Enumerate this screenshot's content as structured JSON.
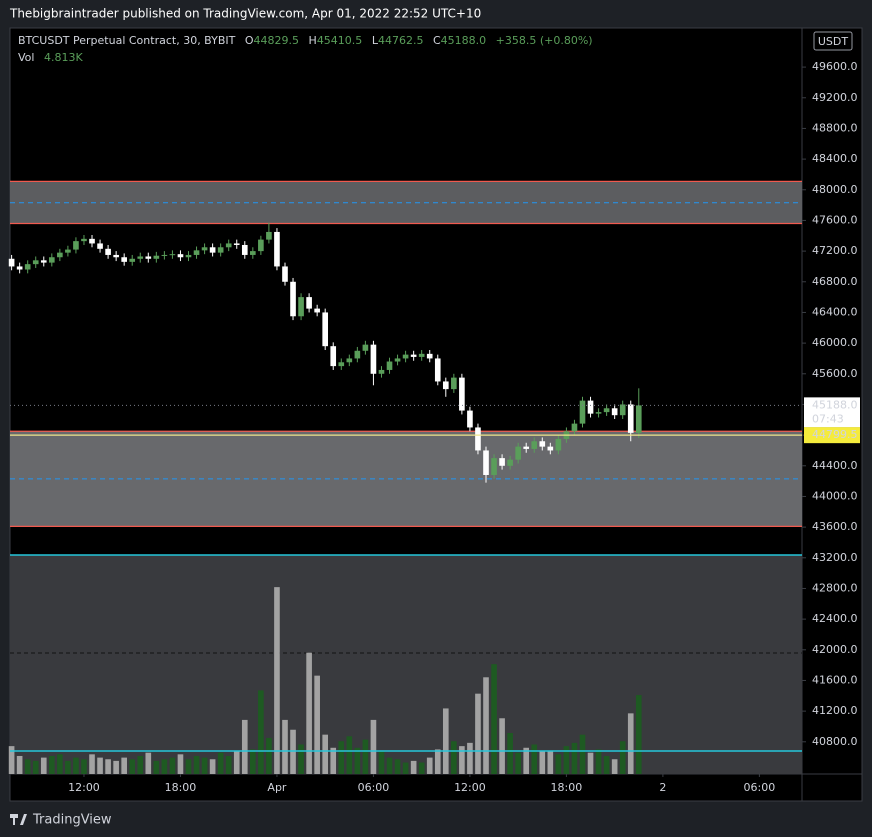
{
  "chart_data": {
    "type": "candlestick",
    "header": "Thebigbraintrader published on TradingView.com, Apr 01, 2022 22:52 UTC+10",
    "symbol": "BTCUSDT Perpetual Contract, 30, BYBIT",
    "legend": {
      "o_key": "O",
      "open": "44829.5",
      "h_key": "H",
      "high": "45410.5",
      "l_key": "L",
      "low": "44762.5",
      "c_key": "C",
      "close": "45188.0",
      "change": "+358.5 (+0.80%)"
    },
    "volume_name": "Vol",
    "volume_label": "4.813K",
    "currency": "USDT",
    "last_price_label": "45188.0",
    "countdown": "07:43",
    "hline": {
      "value": 44799.5,
      "label": "44799.5"
    },
    "brand": "TradingView",
    "up_color": "#5a9e5a",
    "down_color": "#ffffff",
    "volume_up_color": "#1e5a22",
    "volume_down_color": "#a3a3a3",
    "zones": [
      [
        47560,
        48110
      ],
      [
        43610,
        44850
      ]
    ],
    "zone_midlines": [
      47830,
      44230
    ],
    "x": [
      7.5,
      8,
      8.5,
      9,
      9.5,
      10,
      10.5,
      11,
      11.5,
      12,
      12.5,
      13,
      13.5,
      14,
      14.5,
      15,
      15.5,
      16,
      16.5,
      17,
      17.5,
      18,
      18.5,
      19,
      19.5,
      20,
      20.5,
      21,
      21.5,
      22,
      22.5,
      23,
      23.5,
      24,
      24.5,
      25,
      25.5,
      26,
      26.5,
      27,
      27.5,
      28,
      28.5,
      29,
      29.5,
      30,
      30.5,
      31,
      31.5,
      32,
      32.5,
      33,
      33.5,
      34,
      34.5,
      35,
      35.5,
      36,
      36.5,
      37,
      37.5,
      38,
      38.5,
      39,
      39.5,
      40,
      40.5,
      41,
      41.5,
      42,
      42.5,
      43,
      43.5,
      44,
      44.5,
      45,
      45.5,
      46,
      46.5
    ],
    "open": [
      47100,
      47000,
      46960,
      47030,
      47080,
      47050,
      47120,
      47180,
      47220,
      47330,
      47360,
      47300,
      47230,
      47150,
      47120,
      47060,
      47100,
      47130,
      47100,
      47140,
      47150,
      47160,
      47120,
      47150,
      47210,
      47250,
      47180,
      47250,
      47300,
      47280,
      47150,
      47200,
      47350,
      47450,
      47000,
      46800,
      46350,
      46600,
      46450,
      46400,
      45960,
      45700,
      45750,
      45800,
      45900,
      45980,
      45600,
      45650,
      45760,
      45800,
      45850,
      45820,
      45860,
      45800,
      45500,
      45400,
      45550,
      45120,
      44900,
      44600,
      44280,
      44500,
      44400,
      44480,
      44650,
      44620,
      44720,
      44650,
      44600,
      44750,
      44850,
      44950,
      45250,
      45080,
      45100,
      45150,
      45060,
      45200,
      44829.5
    ],
    "high": [
      47150,
      47050,
      47080,
      47130,
      47130,
      47170,
      47230,
      47270,
      47380,
      47410,
      47410,
      47350,
      47280,
      47200,
      47170,
      47150,
      47180,
      47180,
      47190,
      47200,
      47210,
      47210,
      47200,
      47260,
      47300,
      47300,
      47300,
      47350,
      47350,
      47330,
      47250,
      47400,
      47570,
      47500,
      47050,
      46850,
      46650,
      46650,
      46500,
      46450,
      46010,
      45800,
      45850,
      45950,
      46030,
      46030,
      45700,
      45810,
      45850,
      45900,
      45900,
      45910,
      45910,
      45850,
      45550,
      45600,
      45600,
      45170,
      44950,
      44650,
      44550,
      44550,
      44530,
      44700,
      44700,
      44770,
      44770,
      44700,
      44800,
      44900,
      45000,
      45300,
      45300,
      45150,
      45200,
      45200,
      45250,
      45250,
      45410.5
    ],
    "low": [
      46950,
      46910,
      46910,
      46980,
      47000,
      47000,
      47070,
      47130,
      47170,
      47280,
      47250,
      47180,
      47100,
      47070,
      47010,
      47010,
      47050,
      47050,
      47050,
      47090,
      47100,
      47070,
      47070,
      47100,
      47160,
      47130,
      47130,
      47200,
      47230,
      47100,
      47100,
      47150,
      47300,
      46950,
      46750,
      46300,
      46300,
      46400,
      46350,
      45910,
      45650,
      45650,
      45700,
      45750,
      45850,
      45450,
      45550,
      45600,
      45710,
      45750,
      45770,
      45770,
      45750,
      45450,
      45300,
      45350,
      45070,
      44850,
      44550,
      44180,
      44230,
      44350,
      44350,
      44430,
      44570,
      44570,
      44600,
      44550,
      44550,
      44700,
      44800,
      44900,
      45030,
      45030,
      45050,
      45010,
      45010,
      44720,
      44762.5
    ],
    "close": [
      47000,
      46960,
      47030,
      47080,
      47050,
      47120,
      47180,
      47220,
      47330,
      47360,
      47300,
      47230,
      47150,
      47120,
      47060,
      47100,
      47130,
      47100,
      47140,
      47150,
      47160,
      47120,
      47150,
      47210,
      47250,
      47180,
      47250,
      47300,
      47280,
      47150,
      47200,
      47350,
      47450,
      47000,
      46800,
      46350,
      46600,
      46450,
      46400,
      45960,
      45700,
      45750,
      45800,
      45900,
      45980,
      45600,
      45650,
      45760,
      45800,
      45850,
      45820,
      45860,
      45800,
      45500,
      45400,
      45550,
      45120,
      44900,
      44600,
      44280,
      44500,
      44400,
      44480,
      44650,
      44620,
      44720,
      44650,
      44600,
      44750,
      44850,
      44950,
      45250,
      45080,
      45100,
      45150,
      45060,
      45200,
      44829.5,
      45188.0
    ],
    "volume": [
      1700,
      1100,
      900,
      800,
      1000,
      1100,
      1200,
      800,
      1000,
      900,
      1200,
      1000,
      900,
      800,
      1000,
      900,
      1100,
      1300,
      800,
      900,
      1000,
      1200,
      900,
      1100,
      1000,
      900,
      1300,
      1100,
      1400,
      3300,
      1500,
      5100,
      2200,
      11400,
      3300,
      2700,
      1800,
      7400,
      6000,
      2400,
      1600,
      2000,
      2300,
      1600,
      2100,
      3300,
      1400,
      1000,
      900,
      700,
      800,
      700,
      1000,
      1500,
      4000,
      2000,
      1700,
      1900,
      4900,
      5900,
      6700,
      3400,
      2500,
      1300,
      1600,
      1800,
      1400,
      1400,
      1200,
      1700,
      1900,
      2400,
      1300,
      1500,
      1100,
      900,
      2000,
      3700,
      4813
    ],
    "volume_ylim": [
      0,
      13360
    ],
    "xlim": [
      7.4,
      56.65
    ],
    "xticks": [
      {
        "value": 12,
        "label": "12:00"
      },
      {
        "value": 18,
        "label": "18:00"
      },
      {
        "value": 24,
        "label": "Apr"
      },
      {
        "value": 30,
        "label": "06:00"
      },
      {
        "value": 36,
        "label": "12:00"
      },
      {
        "value": 42,
        "label": "18:00"
      },
      {
        "value": 48,
        "label": "2"
      },
      {
        "value": 54,
        "label": "06:00"
      }
    ],
    "ylim": [
      40380,
      50110
    ],
    "yticks": [
      {
        "value": 49600,
        "label": "49600.0"
      },
      {
        "value": 49200,
        "label": "49200.0"
      },
      {
        "value": 48800,
        "label": "48800.0"
      },
      {
        "value": 48400,
        "label": "48400.0"
      },
      {
        "value": 48000,
        "label": "48000.0"
      },
      {
        "value": 47600,
        "label": "47600.0"
      },
      {
        "value": 47200,
        "label": "47200.0"
      },
      {
        "value": 46800,
        "label": "46800.0"
      },
      {
        "value": 46400,
        "label": "46400.0"
      },
      {
        "value": 46000,
        "label": "46000.0"
      },
      {
        "value": 45600,
        "label": "45600.0"
      },
      {
        "value": 45200,
        "label": "45200.0"
      },
      {
        "value": 44800,
        "label": "44800.0"
      },
      {
        "value": 44400,
        "label": "44400.0"
      },
      {
        "value": 44000,
        "label": "44000.0"
      },
      {
        "value": 43600,
        "label": "43600.0"
      },
      {
        "value": 43200,
        "label": "43200.0"
      },
      {
        "value": 42800,
        "label": "42800.0"
      },
      {
        "value": 42400,
        "label": "42400.0"
      },
      {
        "value": 42000,
        "label": "42000.0"
      },
      {
        "value": 41600,
        "label": "41600.0"
      },
      {
        "value": 41200,
        "label": "41200.0"
      },
      {
        "value": 40800,
        "label": "40800.0"
      }
    ]
  }
}
